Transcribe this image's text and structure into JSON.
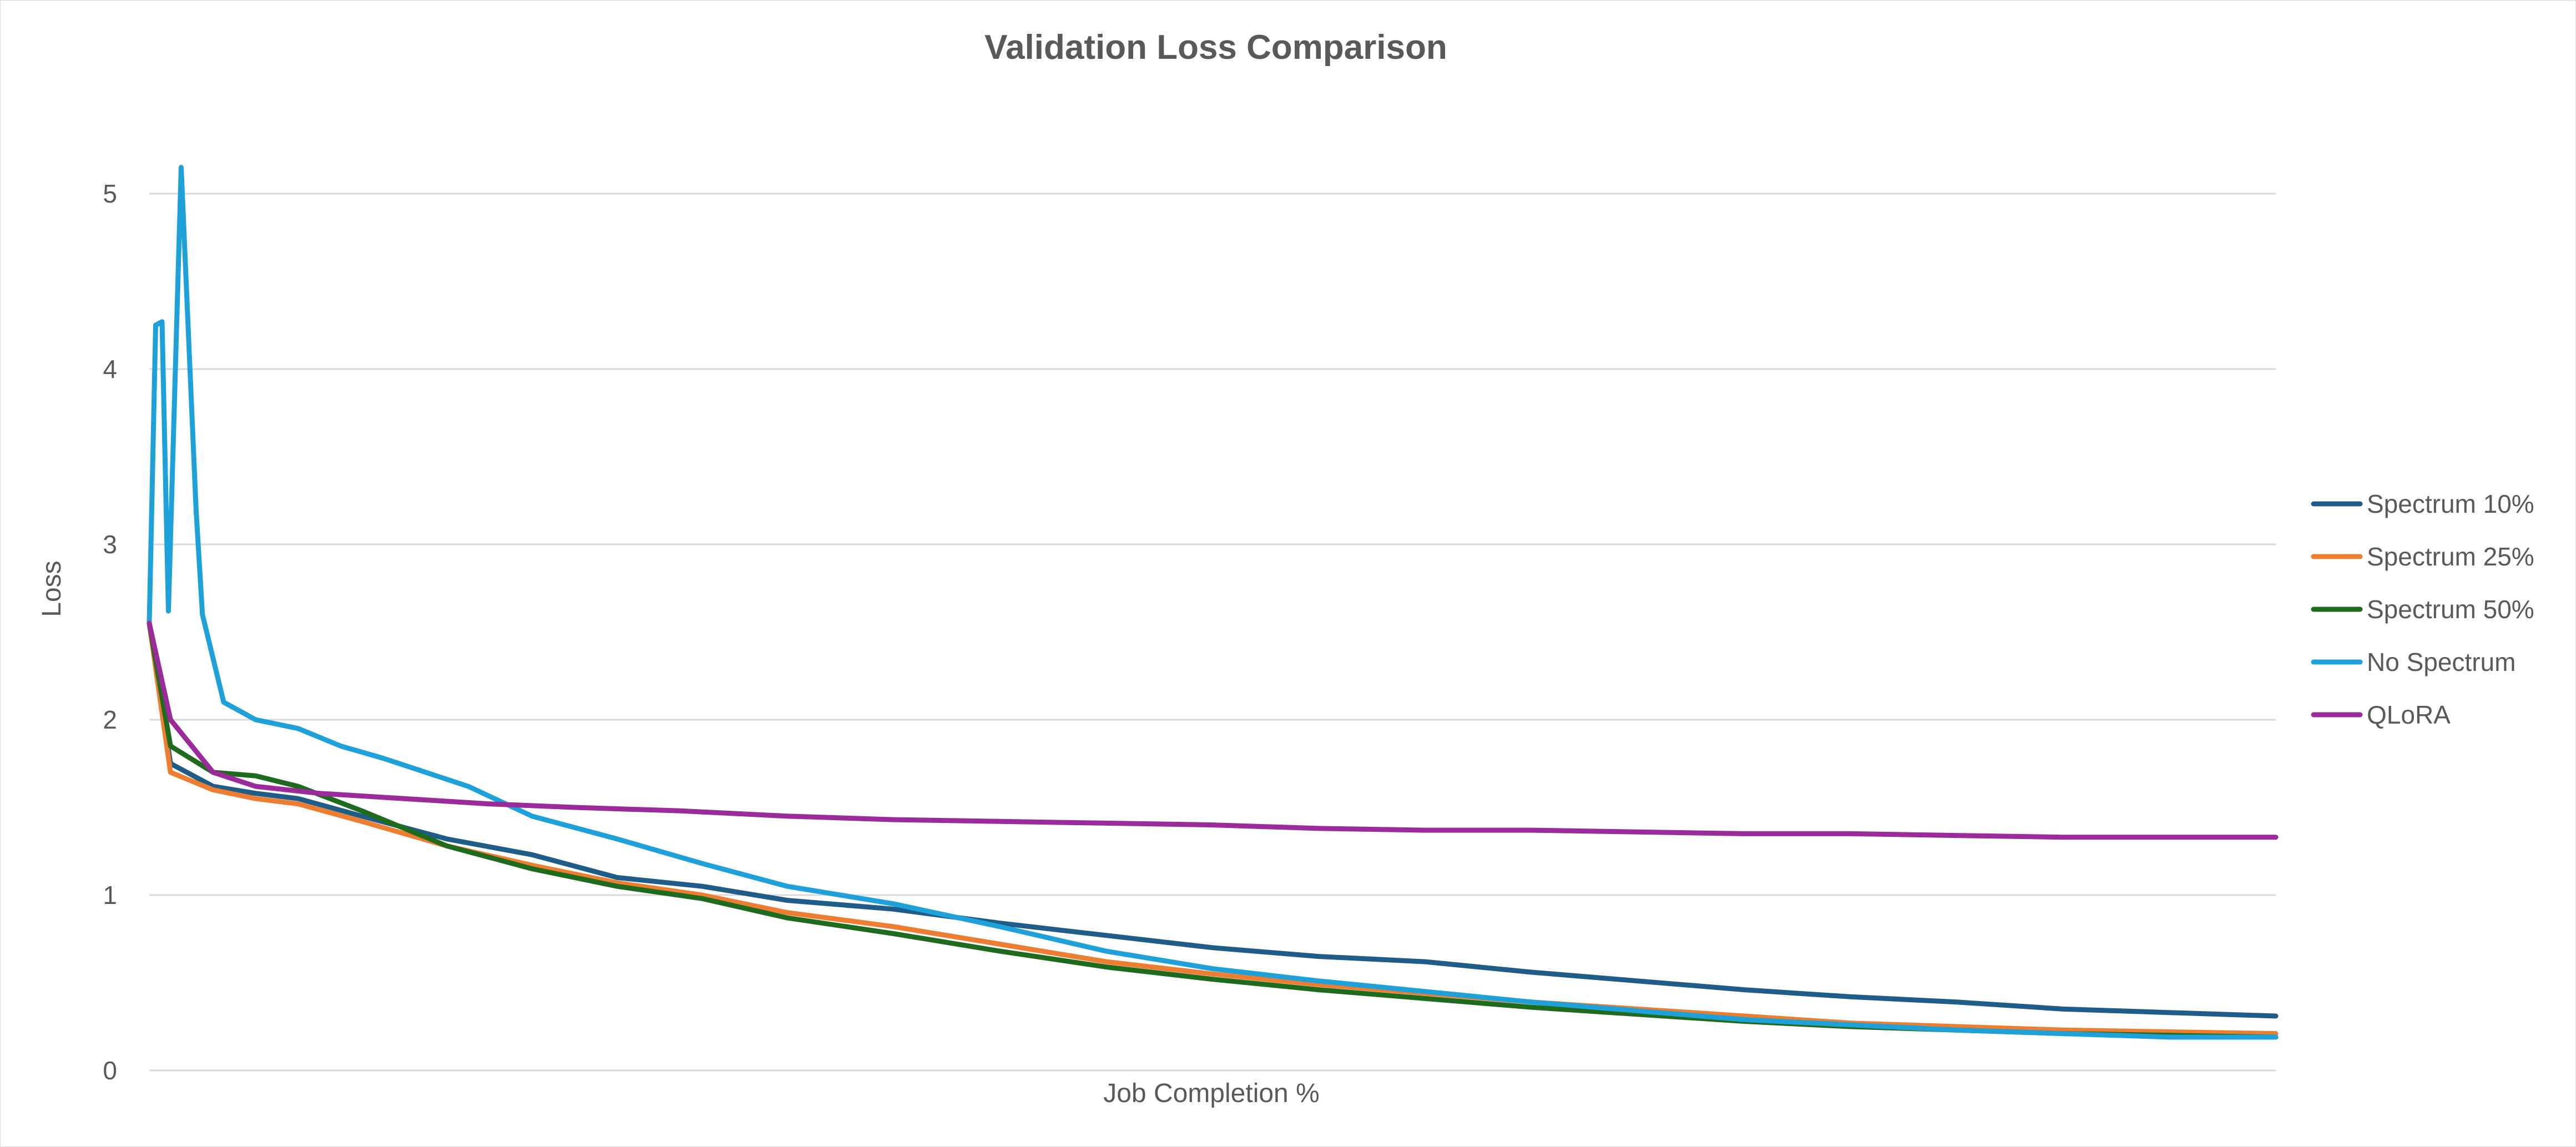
{
  "chart_data": {
    "type": "line",
    "title": "Validation Loss Comparison",
    "xlabel": "Job Completion %",
    "ylabel": "Loss",
    "xlim": [
      0,
      100
    ],
    "ylim": [
      0,
      5.5
    ],
    "yticks": [
      0,
      1,
      2,
      3,
      4,
      5
    ],
    "grid": "horizontal",
    "legend_position": "right",
    "series": [
      {
        "name": "Spectrum 10%",
        "color": "#1f5c87",
        "x": [
          0,
          1,
          3,
          5,
          7,
          10,
          14,
          18,
          22,
          26,
          30,
          35,
          40,
          45,
          50,
          55,
          60,
          65,
          70,
          75,
          80,
          85,
          90,
          95,
          100
        ],
        "values": [
          2.55,
          1.75,
          1.62,
          1.58,
          1.55,
          1.45,
          1.32,
          1.23,
          1.1,
          1.05,
          0.97,
          0.92,
          0.84,
          0.77,
          0.7,
          0.65,
          0.62,
          0.56,
          0.51,
          0.46,
          0.42,
          0.39,
          0.35,
          0.33,
          0.31
        ]
      },
      {
        "name": "Spectrum 25%",
        "color": "#ed7d31",
        "x": [
          0,
          1,
          3,
          5,
          7,
          10,
          14,
          18,
          22,
          26,
          30,
          35,
          40,
          45,
          50,
          55,
          60,
          65,
          70,
          75,
          80,
          85,
          90,
          95,
          100
        ],
        "values": [
          2.55,
          1.7,
          1.6,
          1.55,
          1.52,
          1.42,
          1.28,
          1.17,
          1.07,
          1.0,
          0.9,
          0.82,
          0.72,
          0.62,
          0.55,
          0.49,
          0.44,
          0.39,
          0.35,
          0.31,
          0.27,
          0.25,
          0.23,
          0.22,
          0.21
        ]
      },
      {
        "name": "Spectrum 50%",
        "color": "#1e6b1e",
        "x": [
          0,
          1,
          3,
          5,
          7,
          10,
          14,
          18,
          22,
          26,
          30,
          35,
          40,
          45,
          50,
          55,
          60,
          65,
          70,
          75,
          80,
          85,
          90,
          95,
          100
        ],
        "values": [
          2.55,
          1.85,
          1.7,
          1.68,
          1.62,
          1.48,
          1.28,
          1.15,
          1.05,
          0.98,
          0.87,
          0.78,
          0.68,
          0.59,
          0.52,
          0.46,
          0.41,
          0.36,
          0.32,
          0.28,
          0.25,
          0.23,
          0.21,
          0.2,
          0.19
        ]
      },
      {
        "name": "No Spectrum",
        "color": "#1ea0d8",
        "x": [
          0,
          0.3,
          0.6,
          0.9,
          1.5,
          2.2,
          2.5,
          3.5,
          5,
          7,
          9,
          11,
          13,
          15,
          18,
          22,
          26,
          30,
          35,
          40,
          45,
          50,
          55,
          60,
          65,
          70,
          75,
          80,
          85,
          90,
          95,
          100
        ],
        "values": [
          2.55,
          4.25,
          4.27,
          2.62,
          5.15,
          3.2,
          2.6,
          2.1,
          2.0,
          1.95,
          1.85,
          1.78,
          1.7,
          1.62,
          1.45,
          1.32,
          1.18,
          1.05,
          0.95,
          0.82,
          0.68,
          0.58,
          0.51,
          0.45,
          0.39,
          0.34,
          0.29,
          0.26,
          0.23,
          0.21,
          0.19,
          0.19
        ]
      },
      {
        "name": "QLoRA",
        "color": "#9b2a9b",
        "x": [
          0,
          1,
          3,
          5,
          8,
          12,
          16,
          20,
          25,
          30,
          35,
          40,
          45,
          50,
          55,
          60,
          65,
          70,
          75,
          80,
          85,
          90,
          95,
          100
        ],
        "values": [
          2.55,
          2.0,
          1.7,
          1.62,
          1.58,
          1.55,
          1.52,
          1.5,
          1.48,
          1.45,
          1.43,
          1.42,
          1.41,
          1.4,
          1.38,
          1.37,
          1.37,
          1.36,
          1.35,
          1.35,
          1.34,
          1.33,
          1.33,
          1.33
        ]
      }
    ]
  }
}
